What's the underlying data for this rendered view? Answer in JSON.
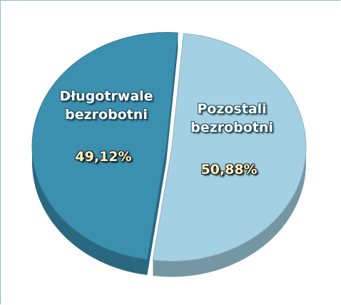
{
  "chart_data": {
    "type": "pie",
    "categories": [
      "Długotrwale bezrobotni",
      "Pozostali bezrobotni"
    ],
    "values": [
      49.12,
      50.88
    ],
    "value_labels": [
      "49,12%",
      "50,88%"
    ],
    "colors": [
      "#3b90b0",
      "#a3d0e2"
    ]
  }
}
